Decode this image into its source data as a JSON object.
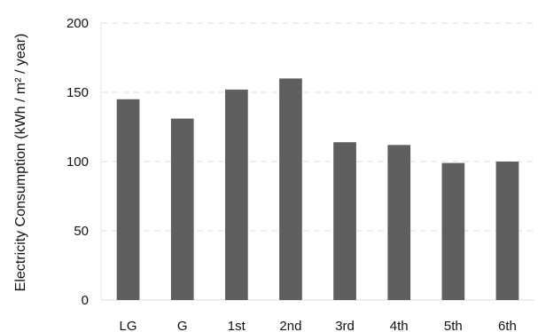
{
  "chart_data": {
    "type": "bar",
    "categories": [
      "LG",
      "G",
      "1st",
      "2nd",
      "3rd",
      "4th",
      "5th",
      "6th"
    ],
    "values": [
      145,
      131,
      152,
      160,
      114,
      112,
      99,
      100
    ],
    "title": "",
    "xlabel": "",
    "ylabel": "Electricity Consumption (kWh / m² / year)",
    "ylim": [
      0,
      200
    ],
    "yticks": [
      "0",
      "50",
      "100",
      "150",
      "200"
    ],
    "grid": true,
    "legend": "none",
    "bar_color": "#5f5f5f",
    "grid_color": "#dcdcdc",
    "text_color": "#111111"
  }
}
